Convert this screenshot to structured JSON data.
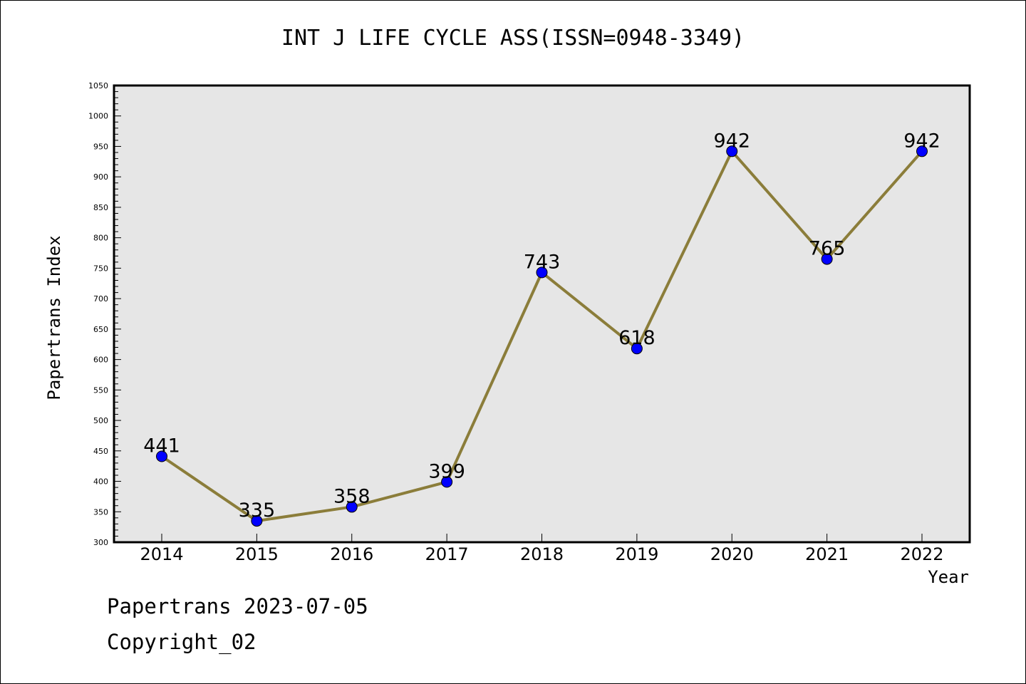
{
  "chart_data": {
    "type": "line",
    "title": "INT J LIFE CYCLE ASS(ISSN=0948-3349)",
    "xlabel": "Year",
    "ylabel": "Papertrans Index",
    "categories": [
      "2014",
      "2015",
      "2016",
      "2017",
      "2018",
      "2019",
      "2020",
      "2021",
      "2022"
    ],
    "values": [
      441,
      335,
      358,
      399,
      743,
      618,
      942,
      765,
      942
    ],
    "data_labels": [
      "441",
      "335",
      "358",
      "399",
      "743",
      "618",
      "942",
      "765",
      "942"
    ],
    "ylim": [
      300,
      1050
    ],
    "yticks": [
      "300",
      "350",
      "400",
      "450",
      "500",
      "550",
      "600",
      "650",
      "700",
      "750",
      "800",
      "850",
      "900",
      "950",
      "1000",
      "1050"
    ],
    "grid": false,
    "legend": "none",
    "colors": {
      "line": "#8B7D3A",
      "marker": "#0000FF",
      "plot_background": "#E6E6E6",
      "axis": "#000000"
    }
  },
  "footer": {
    "credit": "Papertrans 2023-07-05",
    "copyright": "Copyright_02"
  }
}
